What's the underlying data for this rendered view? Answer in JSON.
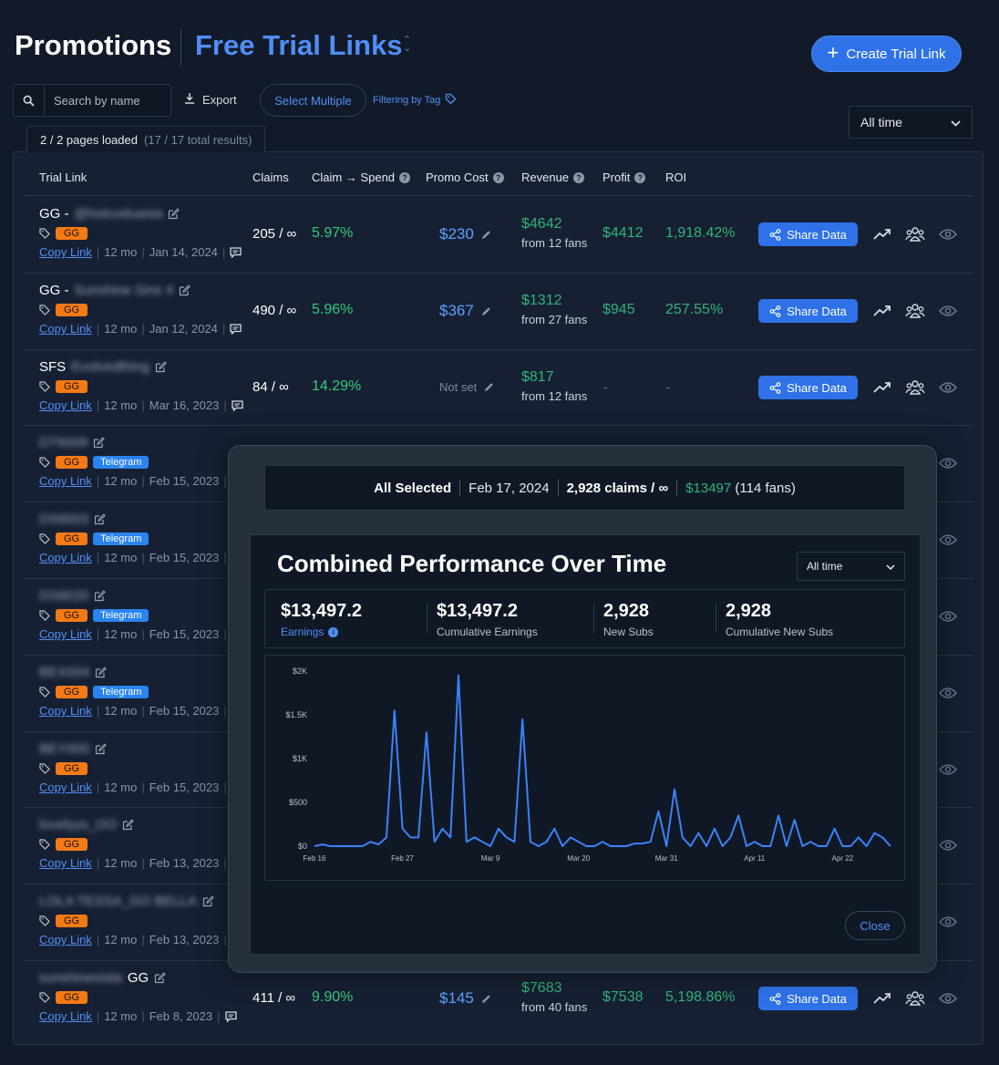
{
  "header": {
    "title": "Promotions",
    "section": "Free Trial Links",
    "create_button": "Create Trial Link"
  },
  "toolbar": {
    "search_placeholder": "Search by name",
    "export_label": "Export",
    "select_multiple": "Select Multiple",
    "filter_tag": "Filtering by Tag",
    "range": "All time",
    "pages_loaded": "2 / 2 pages loaded",
    "total_results": "(17 / 17 total results)"
  },
  "table": {
    "columns": [
      "Trial Link",
      "Claims",
      "Claim → Spend",
      "Promo Cost",
      "Revenue",
      "Profit",
      "ROI"
    ],
    "share_label": "Share Data",
    "copy_label": "Copy Link",
    "not_set_label": "Not set",
    "rows": [
      {
        "prefix": "GG -",
        "name": "@hotcoduania",
        "tags": [
          "GG"
        ],
        "duration": "12 mo",
        "date": "Jan 14, 2024",
        "claims": "205 / ∞",
        "conversion": "5.97%",
        "promo_cost": "$230",
        "revenue": "$4642",
        "revenue_sub": "from 12 fans",
        "profit": "$4412",
        "roi": "1,918.42%"
      },
      {
        "prefix": "GG -",
        "name": "Sunshine Sins 4",
        "tags": [
          "GG"
        ],
        "duration": "12 mo",
        "date": "Jan 12, 2024",
        "claims": "490 / ∞",
        "conversion": "5.96%",
        "promo_cost": "$367",
        "revenue": "$1312",
        "revenue_sub": "from 27 fans",
        "profit": "$945",
        "roi": "257.55%"
      },
      {
        "prefix": "SFS",
        "name": "Evolvedthing",
        "tags": [
          "GG"
        ],
        "duration": "12 mo",
        "date": "Mar 16, 2023",
        "claims": "84 / ∞",
        "conversion": "14.29%",
        "promo_cost": "",
        "revenue": "$817",
        "revenue_sub": "from 12 fans",
        "profit": "-",
        "roi": "-"
      },
      {
        "prefix": "",
        "name": "DT6009",
        "tags": [
          "GG",
          "Telegram"
        ],
        "duration": "12 mo",
        "date": "Feb 15, 2023"
      },
      {
        "prefix": "",
        "name": "DS6003",
        "tags": [
          "GG",
          "Telegram"
        ],
        "duration": "12 mo",
        "date": "Feb 15, 2023"
      },
      {
        "prefix": "",
        "name": "DS6020",
        "tags": [
          "GG",
          "Telegram"
        ],
        "duration": "12 mo",
        "date": "Feb 15, 2023"
      },
      {
        "prefix": "",
        "name": "BEX004",
        "tags": [
          "GG",
          "Telegram"
        ],
        "duration": "12 mo",
        "date": "Feb 15, 2023"
      },
      {
        "prefix": "",
        "name": "BEY000",
        "tags": [
          "GG"
        ],
        "duration": "12 mo",
        "date": "Feb 15, 2023"
      },
      {
        "prefix": "",
        "name": "lovelyys_OO",
        "tags": [
          "GG"
        ],
        "duration": "12 mo",
        "date": "Feb 13, 2023"
      },
      {
        "prefix": "",
        "name": "LOLA TESSA_GO BELLA",
        "tags": [
          "GG"
        ],
        "duration": "12 mo",
        "date": "Feb 13, 2023"
      },
      {
        "prefix": "GG",
        "name": "sunshinesista",
        "tags": [
          "GG"
        ],
        "duration": "12 mo",
        "date": "Feb 8, 2023",
        "claims": "411 / ∞",
        "conversion": "9.90%",
        "promo_cost": "$145",
        "revenue": "$7683",
        "revenue_sub": "from 40 fans",
        "profit": "$7538",
        "roi": "5,198.86%"
      }
    ]
  },
  "modal": {
    "selection": {
      "label": "All Selected",
      "date": "Feb 17, 2024",
      "claims": "2,928 claims / ∞",
      "earnings": "$13497",
      "fans": "(114 fans)"
    },
    "title": "Combined Performance Over Time",
    "range": "All time",
    "stats": [
      {
        "value": "$13,497.2",
        "label": "Earnings"
      },
      {
        "value": "$13,497.2",
        "label": "Cumulative Earnings"
      },
      {
        "value": "2,928",
        "label": "New Subs"
      },
      {
        "value": "2,928",
        "label": "Cumulative New Subs"
      }
    ],
    "close_label": "Close"
  },
  "colors": {
    "accent": "#2f72e8",
    "positive": "#2fb37a",
    "tag_gg": "#f47a16",
    "tag_telegram": "#2a84f0",
    "line": "#3b82f6"
  },
  "chart_data": {
    "type": "line",
    "x": [
      "Feb 16",
      "Feb 17",
      "Feb 18",
      "Feb 19",
      "Feb 20",
      "Feb 21",
      "Feb 22",
      "Feb 23",
      "Feb 24",
      "Feb 25",
      "Feb 26",
      "Feb 27",
      "Feb 28",
      "Feb 29",
      "Mar 1",
      "Mar 2",
      "Mar 3",
      "Mar 4",
      "Mar 5",
      "Mar 6",
      "Mar 7",
      "Mar 8",
      "Mar 9",
      "Mar 10",
      "Mar 11",
      "Mar 12",
      "Mar 13",
      "Mar 14",
      "Mar 15",
      "Mar 16",
      "Mar 17",
      "Mar 18",
      "Mar 19",
      "Mar 20",
      "Mar 21",
      "Mar 22",
      "Mar 23",
      "Mar 24",
      "Mar 25",
      "Mar 26",
      "Mar 27",
      "Mar 28",
      "Mar 29",
      "Mar 30",
      "Mar 31",
      "Apr 1",
      "Apr 2",
      "Apr 3",
      "Apr 4",
      "Apr 5",
      "Apr 6",
      "Apr 7",
      "Apr 8",
      "Apr 9",
      "Apr 10",
      "Apr 11",
      "Apr 12",
      "Apr 13",
      "Apr 14",
      "Apr 15",
      "Apr 16",
      "Apr 17",
      "Apr 18",
      "Apr 19",
      "Apr 20",
      "Apr 21",
      "Apr 22",
      "Apr 23",
      "Apr 24",
      "Apr 25",
      "Apr 26",
      "Apr 27",
      "Apr 28"
    ],
    "values": [
      0,
      20,
      0,
      0,
      0,
      0,
      0,
      50,
      20,
      100,
      1550,
      200,
      100,
      100,
      1300,
      50,
      200,
      100,
      1950,
      50,
      100,
      50,
      0,
      200,
      100,
      50,
      1450,
      50,
      0,
      50,
      200,
      0,
      100,
      50,
      0,
      0,
      50,
      0,
      0,
      0,
      30,
      30,
      50,
      400,
      0,
      650,
      100,
      0,
      150,
      0,
      200,
      0,
      100,
      350,
      0,
      50,
      0,
      0,
      350,
      0,
      300,
      0,
      50,
      0,
      0,
      200,
      0,
      0,
      100,
      0,
      150,
      100,
      0
    ],
    "tick_labels": [
      "Feb 16",
      "Feb 27",
      "Mar 9",
      "Mar 20",
      "Mar 31",
      "Apr 11",
      "Apr 22"
    ],
    "y_ticks": [
      "$0",
      "$500",
      "$1K",
      "$1.5K",
      "$2K"
    ],
    "ylim": [
      0,
      2000
    ],
    "title": "",
    "xlabel": "",
    "ylabel": "",
    "grid": false
  }
}
